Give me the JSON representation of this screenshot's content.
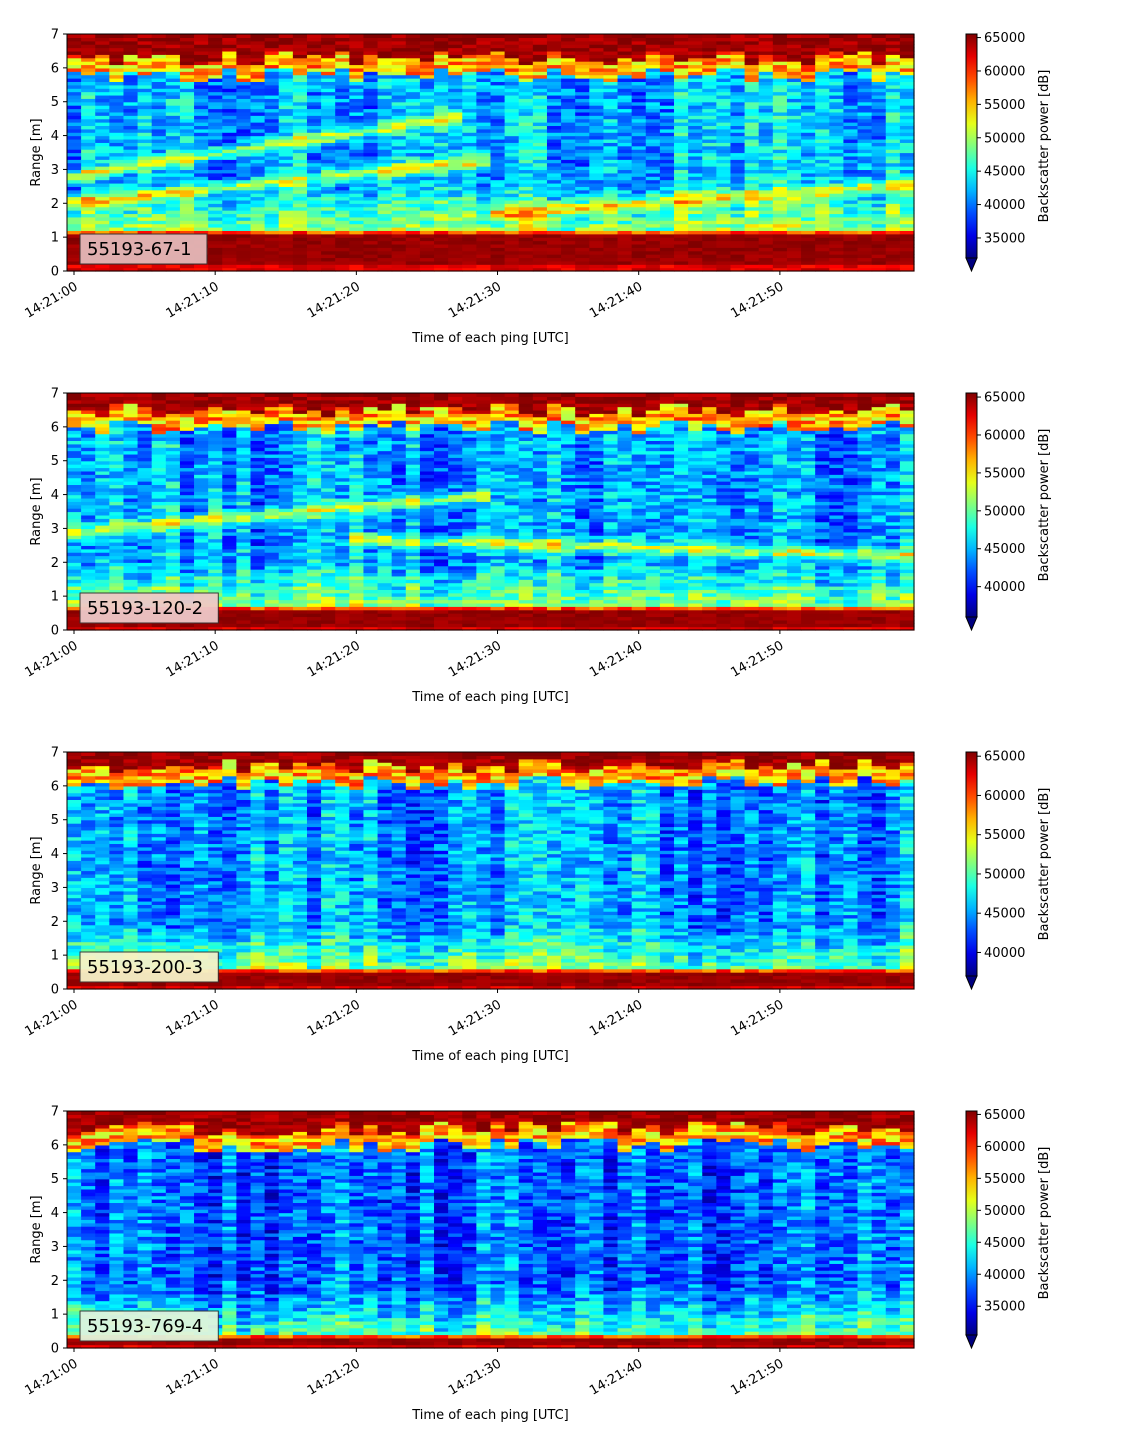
{
  "figure": {
    "xlabel": "Time of each ping [UTC]",
    "ylabel": "Range [m]",
    "colorbar_label": "Backscatter power [dB]",
    "colormap": "jet"
  },
  "chart_data": [
    {
      "type": "heatmap",
      "label": "55193-67-1",
      "label_box_color": "#e4b9b9",
      "xlabel": "Time of each ping [UTC]",
      "ylabel": "Range [m]",
      "x_ticks": [
        "14:21:00",
        "14:21:10",
        "14:21:20",
        "14:21:30",
        "14:21:40",
        "14:21:50"
      ],
      "x_range_seconds": [
        0,
        59.5
      ],
      "y_ticks": [
        0,
        1,
        2,
        3,
        4,
        5,
        6,
        7
      ],
      "ylim": [
        0,
        7
      ],
      "colorbar_label": "Backscatter power [dB]",
      "colorbar_ticks": [
        35000,
        40000,
        45000,
        50000,
        55000,
        60000,
        65000
      ],
      "colorbar_range": [
        32000,
        65535
      ],
      "features": {
        "bottom_echo_m": [
          0.25,
          1.1
        ],
        "surface_echo_m": 6.3,
        "target_tracks": [
          {
            "t0": 0,
            "r0": 2.8,
            "t1": 28,
            "r1": 4.6
          },
          {
            "t0": 0,
            "r0": 2.0,
            "t1": 30,
            "r1": 3.3
          },
          {
            "t0": 30,
            "r0": 1.7,
            "t1": 60,
            "r1": 2.6
          }
        ]
      }
    },
    {
      "type": "heatmap",
      "label": "55193-120-2",
      "label_box_color": "#eec9c9",
      "xlabel": "Time of each ping [UTC]",
      "ylabel": "Range [m]",
      "x_ticks": [
        "14:21:00",
        "14:21:10",
        "14:21:20",
        "14:21:30",
        "14:21:40",
        "14:21:50"
      ],
      "x_range_seconds": [
        0,
        59.5
      ],
      "y_ticks": [
        0,
        1,
        2,
        3,
        4,
        5,
        6,
        7
      ],
      "ylim": [
        0,
        7
      ],
      "colorbar_label": "Backscatter power [dB]",
      "colorbar_ticks": [
        40000,
        45000,
        50000,
        55000,
        60000,
        65000
      ],
      "colorbar_range": [
        36000,
        65535
      ],
      "features": {
        "bottom_echo_m": [
          0.15,
          0.6
        ],
        "surface_echo_m": 6.5,
        "target_tracks": [
          {
            "t0": 0,
            "r0": 2.9,
            "t1": 30,
            "r1": 4.0
          },
          {
            "t0": 20,
            "r0": 2.7,
            "t1": 60,
            "r1": 2.2
          }
        ]
      }
    },
    {
      "type": "heatmap",
      "label": "55193-200-3",
      "label_box_color": "#f6f2c8",
      "xlabel": "Time of each ping [UTC]",
      "ylabel": "Range [m]",
      "x_ticks": [
        "14:21:00",
        "14:21:10",
        "14:21:20",
        "14:21:30",
        "14:21:40",
        "14:21:50"
      ],
      "x_range_seconds": [
        0,
        59.5
      ],
      "y_ticks": [
        0,
        1,
        2,
        3,
        4,
        5,
        6,
        7
      ],
      "ylim": [
        0,
        7
      ],
      "colorbar_label": "Backscatter power [dB]",
      "colorbar_ticks": [
        40000,
        45000,
        50000,
        55000,
        60000,
        65000
      ],
      "colorbar_range": [
        37000,
        65535
      ],
      "features": {
        "bottom_echo_m": [
          0.15,
          0.45
        ],
        "surface_echo_m": 6.6,
        "target_tracks": []
      }
    },
    {
      "type": "heatmap",
      "label": "55193-769-4",
      "label_box_color": "#e0f4dc",
      "xlabel": "Time of each ping [UTC]",
      "ylabel": "Range [m]",
      "x_ticks": [
        "14:21:00",
        "14:21:10",
        "14:21:20",
        "14:21:30",
        "14:21:40",
        "14:21:50"
      ],
      "x_range_seconds": [
        0,
        59.5
      ],
      "y_ticks": [
        0,
        1,
        2,
        3,
        4,
        5,
        6,
        7
      ],
      "ylim": [
        0,
        7
      ],
      "colorbar_label": "Backscatter power [dB]",
      "colorbar_ticks": [
        35000,
        40000,
        45000,
        50000,
        55000,
        60000,
        65000
      ],
      "colorbar_range": [
        30500,
        65535
      ],
      "features": {
        "bottom_echo_m": [
          0.15,
          0.3
        ],
        "surface_echo_m": 6.5,
        "target_tracks": []
      }
    }
  ]
}
